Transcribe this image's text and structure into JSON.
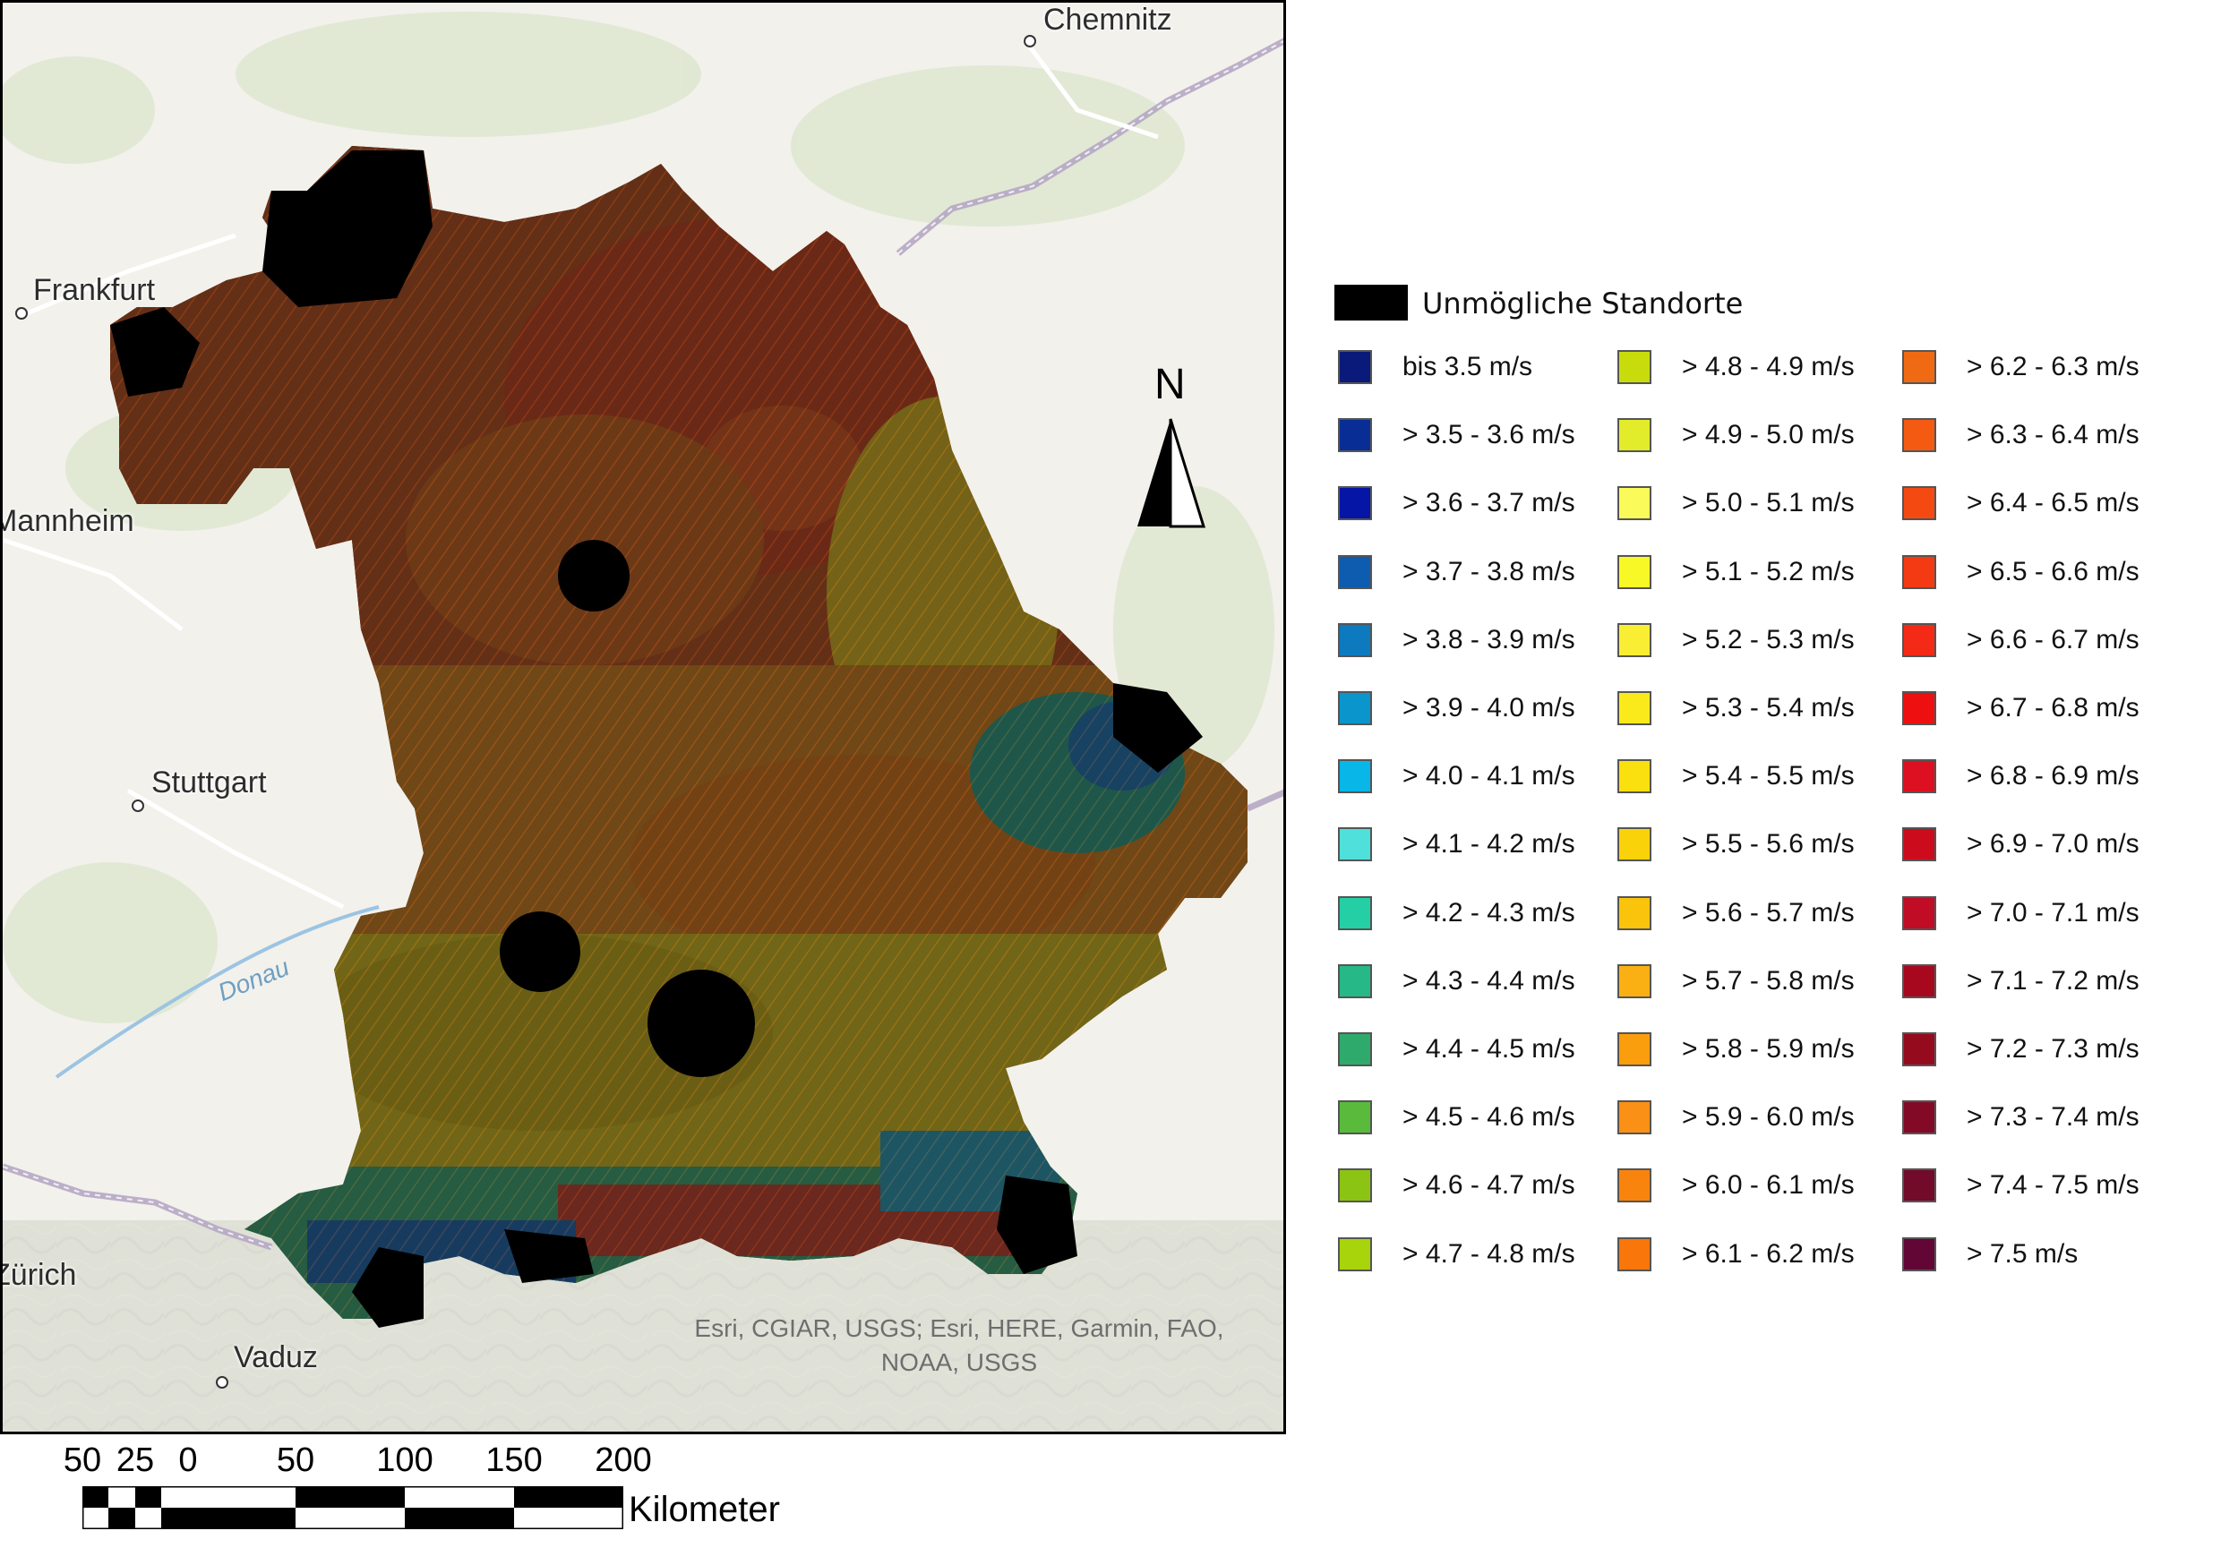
{
  "map": {
    "cities": [
      {
        "name": "Chemnitz"
      },
      {
        "name": "Frankfurt"
      },
      {
        "name": "Mannheim"
      },
      {
        "name": "Stuttgart"
      },
      {
        "name": "Zürich"
      },
      {
        "name": "Vaduz"
      }
    ],
    "river_label": "Donau",
    "attribution_line1": "Esri, CGIAR, USGS; Esri, HERE, Garmin, FAO,",
    "attribution_line2": "NOAA, USGS",
    "north_label": "N"
  },
  "legend": {
    "impossible_label": "Unmögliche Standorte",
    "impossible_color": "#000000",
    "items": [
      {
        "label": "bis 3.5 m/s",
        "color": "#0a1a7a"
      },
      {
        "label": "> 3.5 - 3.6 m/s",
        "color": "#082e96"
      },
      {
        "label": "> 3.6 - 3.7 m/s",
        "color": "#0515a6"
      },
      {
        "label": "> 3.7 - 3.8 m/s",
        "color": "#0e5cb0"
      },
      {
        "label": "> 3.8 - 3.9 m/s",
        "color": "#0d7ac0"
      },
      {
        "label": "> 3.9 - 4.0 m/s",
        "color": "#0a96cc"
      },
      {
        "label": "> 4.0 - 4.1 m/s",
        "color": "#08b6e8"
      },
      {
        "label": "> 4.1 - 4.2 m/s",
        "color": "#4fe0dc"
      },
      {
        "label": "> 4.2 - 4.3 m/s",
        "color": "#24cfa6"
      },
      {
        "label": "> 4.3 - 4.4 m/s",
        "color": "#26b886"
      },
      {
        "label": "> 4.4 - 4.5 m/s",
        "color": "#2eaa6c"
      },
      {
        "label": "> 4.5 - 4.6 m/s",
        "color": "#5aba3c"
      },
      {
        "label": "> 4.6 - 4.7 m/s",
        "color": "#8cc414"
      },
      {
        "label": "> 4.7 - 4.8 m/s",
        "color": "#a8d40c"
      },
      {
        "label": "> 4.8 - 4.9 m/s",
        "color": "#c8dc0c"
      },
      {
        "label": "> 4.9 - 5.0 m/s",
        "color": "#e2ec2a"
      },
      {
        "label": "> 5.0 - 5.1 m/s",
        "color": "#fafa5a"
      },
      {
        "label": "> 5.1 - 5.2 m/s",
        "color": "#f8f826"
      },
      {
        "label": "> 5.2 - 5.3 m/s",
        "color": "#faee34"
      },
      {
        "label": "> 5.3 - 5.4 m/s",
        "color": "#faea1c"
      },
      {
        "label": "> 5.4 - 5.5 m/s",
        "color": "#fae00e"
      },
      {
        "label": "> 5.5 - 5.6 m/s",
        "color": "#fad20a"
      },
      {
        "label": "> 5.6 - 5.7 m/s",
        "color": "#fac40c"
      },
      {
        "label": "> 5.7 - 5.8 m/s",
        "color": "#fab012"
      },
      {
        "label": "> 5.8 - 5.9 m/s",
        "color": "#fa9e0e"
      },
      {
        "label": "> 5.9 - 6.0 m/s",
        "color": "#fa9016"
      },
      {
        "label": "> 6.0 - 6.1 m/s",
        "color": "#f8840e"
      },
      {
        "label": "> 6.1 - 6.2 m/s",
        "color": "#f8760a"
      },
      {
        "label": "> 6.2 - 6.3 m/s",
        "color": "#f06a14"
      },
      {
        "label": "> 6.3 - 6.4 m/s",
        "color": "#f45a12"
      },
      {
        "label": "> 6.4 - 6.5 m/s",
        "color": "#f44a12"
      },
      {
        "label": "> 6.5 - 6.6 m/s",
        "color": "#f43a12"
      },
      {
        "label": "> 6.6 - 6.7 m/s",
        "color": "#f42a16"
      },
      {
        "label": "> 6.7 - 6.8 m/s",
        "color": "#ee1010"
      },
      {
        "label": "> 6.8 - 6.9 m/s",
        "color": "#dc1020"
      },
      {
        "label": "> 6.9 - 7.0 m/s",
        "color": "#cc0c1c"
      },
      {
        "label": "> 7.0 - 7.1 m/s",
        "color": "#c00c24"
      },
      {
        "label": "> 7.1 - 7.2 m/s",
        "color": "#a8081e"
      },
      {
        "label": "> 7.2 - 7.3 m/s",
        "color": "#960a1e"
      },
      {
        "label": "> 7.3 - 7.4 m/s",
        "color": "#820a26"
      },
      {
        "label": "> 7.4 - 7.5 m/s",
        "color": "#720a2a"
      },
      {
        "label": "> 7.5 m/s",
        "color": "#620636"
      }
    ]
  },
  "scalebar": {
    "ticks": [
      "50",
      "25",
      "0",
      "50",
      "100",
      "150",
      "200"
    ],
    "unit": "Kilometer"
  }
}
